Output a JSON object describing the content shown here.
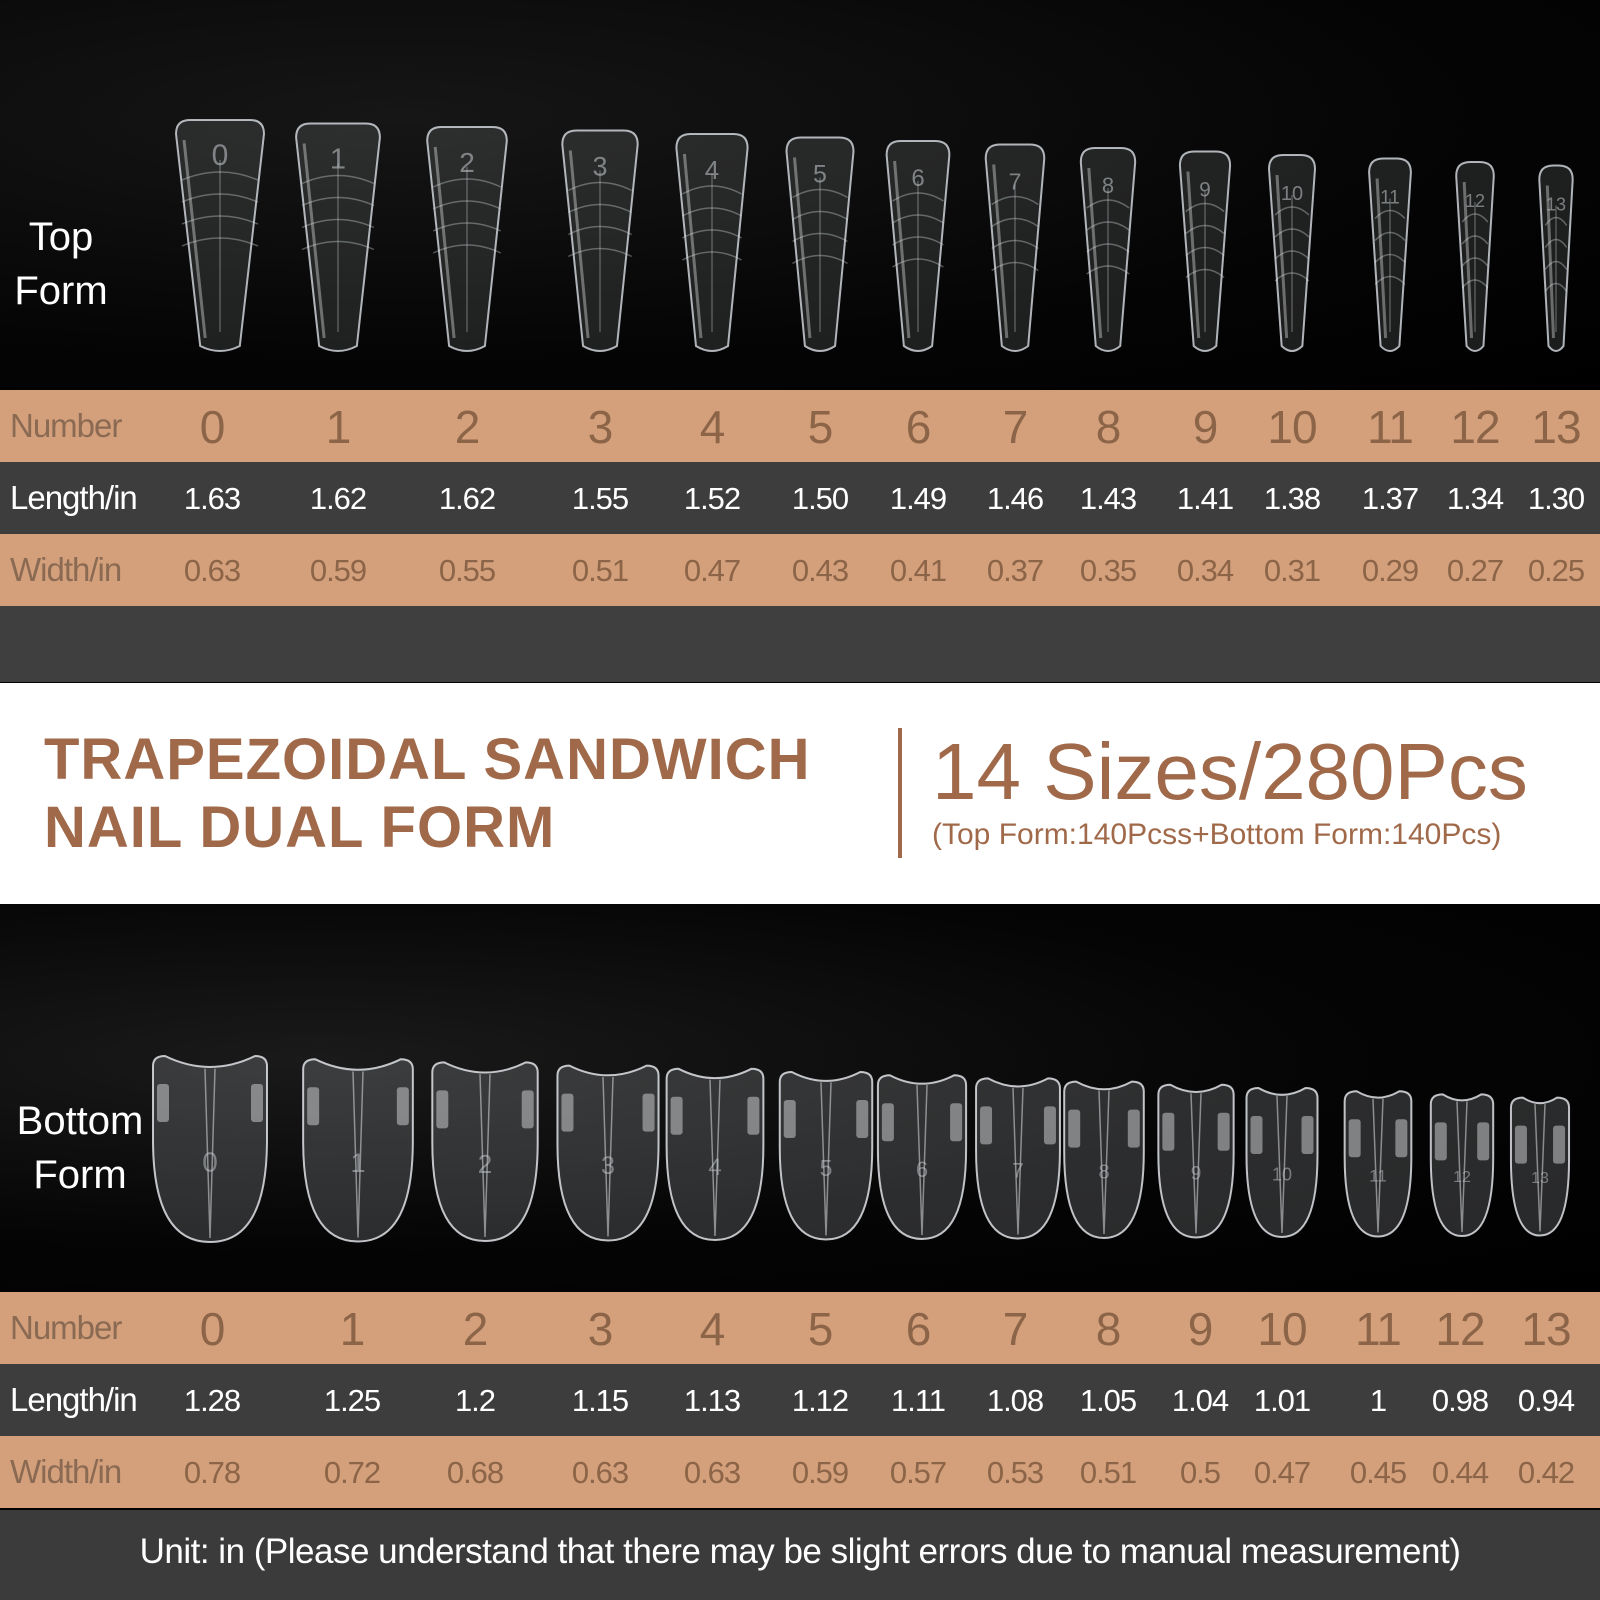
{
  "top_form": {
    "label_line1": "Top",
    "label_line2": "Form",
    "tip_numbers": [
      "0",
      "1",
      "2",
      "3",
      "4",
      "5",
      "6",
      "7",
      "8",
      "9",
      "10",
      "11",
      "12",
      "13"
    ],
    "table": {
      "number_label": "Number",
      "length_label": "Length/in",
      "width_label": "Width/in",
      "numbers": [
        "0",
        "1",
        "2",
        "3",
        "4",
        "5",
        "6",
        "7",
        "8",
        "9",
        "10",
        "11",
        "12",
        "13"
      ],
      "lengths": [
        "1.63",
        "1.62",
        "1.62",
        "1.55",
        "1.52",
        "1.50",
        "1.49",
        "1.46",
        "1.43",
        "1.41",
        "1.38",
        "1.37",
        "1.34",
        "1.30"
      ],
      "widths": [
        "0.63",
        "0.59",
        "0.55",
        "0.51",
        "0.47",
        "0.43",
        "0.41",
        "0.37",
        "0.35",
        "0.34",
        "0.31",
        "0.29",
        "0.27",
        "0.25"
      ]
    }
  },
  "banner": {
    "title_line1": "TRAPEZOIDAL SANDWICH",
    "title_line2": "NAIL DUAL FORM",
    "sizes": "14 Sizes/280Pcs",
    "sizes_detail": "(Top Form:140Pcss+Bottom Form:140Pcs)"
  },
  "bottom_form": {
    "label_line1": "Bottom",
    "label_line2": "Form",
    "tip_numbers": [
      "0",
      "1",
      "2",
      "3",
      "4",
      "5",
      "6",
      "7",
      "8",
      "9",
      "10",
      "11",
      "12",
      "13"
    ],
    "table": {
      "number_label": "Number",
      "length_label": "Length/in",
      "width_label": "Width/in",
      "numbers": [
        "0",
        "1",
        "2",
        "3",
        "4",
        "5",
        "6",
        "7",
        "8",
        "9",
        "10",
        "11",
        "12",
        "13"
      ],
      "lengths": [
        "1.28",
        "1.25",
        "1.2",
        "1.15",
        "1.13",
        "1.12",
        "1.11",
        "1.08",
        "1.05",
        "1.04",
        "1.01",
        "1",
        "0.98",
        "0.94"
      ],
      "widths": [
        "0.78",
        "0.72",
        "0.68",
        "0.63",
        "0.63",
        "0.59",
        "0.57",
        "0.53",
        "0.51",
        "0.5",
        "0.47",
        "0.45",
        "0.44",
        "0.42"
      ]
    }
  },
  "footer": {
    "note": "Unit: in (Please understand that there may be slight errors due to manual measurement)"
  },
  "colors": {
    "tan_row": "#d4a07c",
    "dark_row": "#3d3d3d",
    "accent_brown": "#a0694a",
    "number_brown": "#8c6447"
  }
}
